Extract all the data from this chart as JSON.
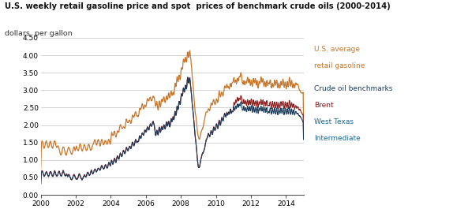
{
  "title": "U.S. weekly retail gasoline price and spot  prices of benchmark crude oils (2000-2014)",
  "ylabel": "dollars  per gallon",
  "ylim": [
    0.0,
    4.75
  ],
  "yticks": [
    0.0,
    0.5,
    1.0,
    1.5,
    2.0,
    2.5,
    3.0,
    3.5,
    4.0,
    4.5
  ],
  "xlim": [
    2000.0,
    2015.0
  ],
  "xticks": [
    2000,
    2002,
    2004,
    2006,
    2008,
    2010,
    2012,
    2014
  ],
  "colors": {
    "gasoline": "#c8762a",
    "brent": "#8b1a1a",
    "wti": "#1a3a5c",
    "crude_label": "#1a3a5c",
    "brent_label": "#8b1a1a",
    "wti_label": "#1a6a9a"
  },
  "legend": {
    "crude_label": "Crude oil benchmarks",
    "brent_label": "Brent",
    "wti_label1": "West Texas",
    "wti_label2": "Intermediate",
    "gasoline_label1": "U.S. average",
    "gasoline_label2": "retail gasoline"
  },
  "background": "#ffffff",
  "grid_color": "#cccccc"
}
